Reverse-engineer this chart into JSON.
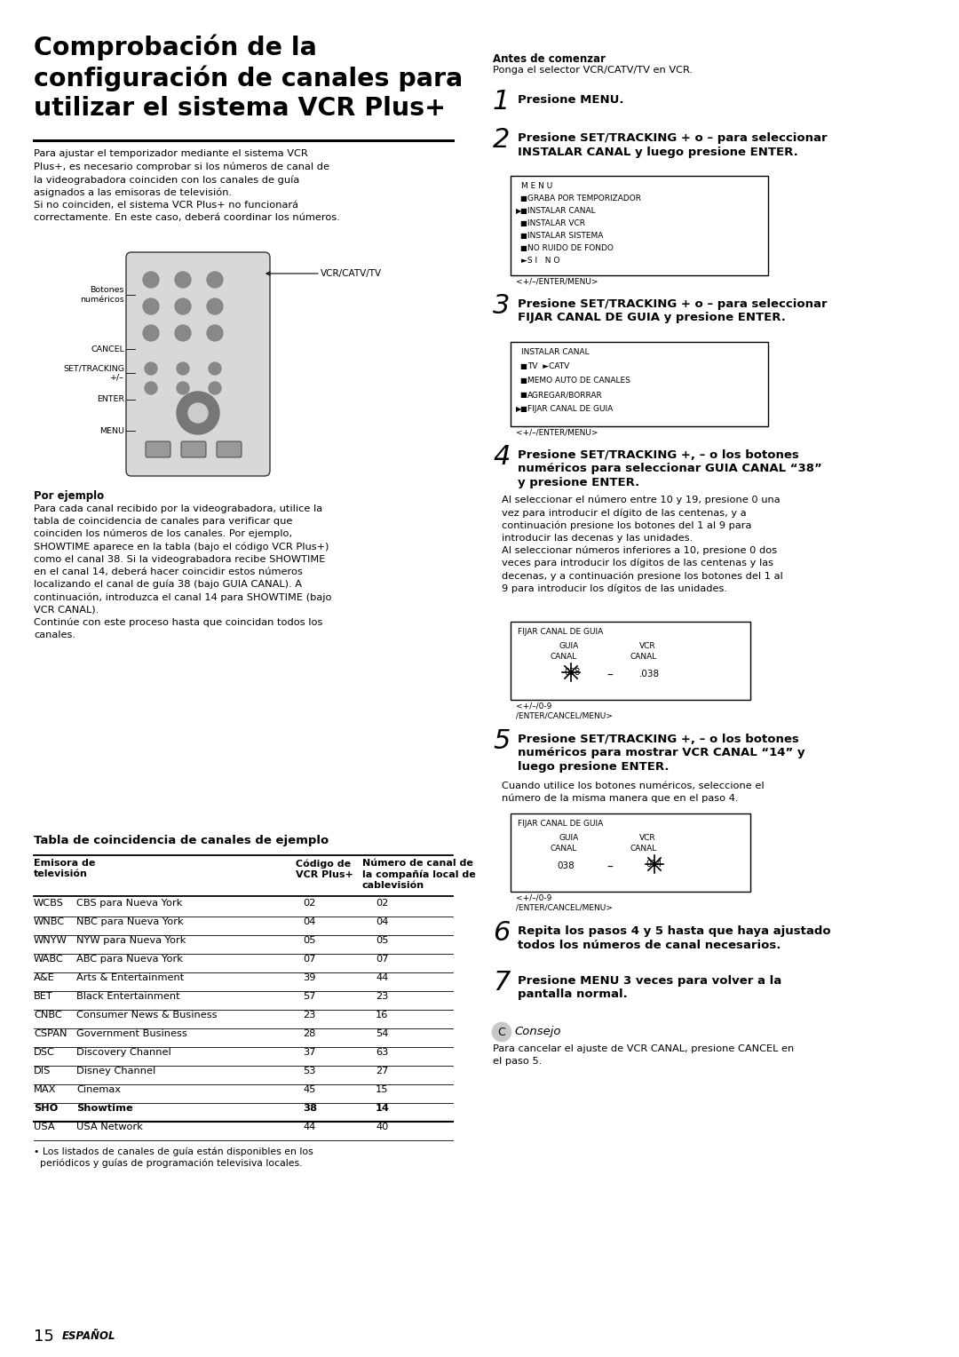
{
  "bg_color": "#ffffff",
  "title": "Comprobación de la\nconfiguración de canales para\nutilizar el sistema VCR Plus+",
  "intro_text": "Para ajustar el temporizador mediante el sistema VCR\nPlus+, es necesario comprobar si los números de canal de\nla videograbadora coinciden con los canales de guía\nasignados a las emisoras de televisión.\nSi no coinciden, el sistema VCR Plus+ no funcionará\ncorrectamente. En este caso, deberá coordinar los números.",
  "por_ejemplo_title": "Por ejemplo",
  "por_ejemplo_text": "Para cada canal recibido por la videograbadora, utilice la\ntabla de coincidencia de canales para verificar que\ncoinciden los números de los canales. Por ejemplo,\nSHOWTIME aparece en la tabla (bajo el código VCR Plus+)\ncomo el canal 38. Si la videograbadora recibe SHOWTIME\nen el canal 14, deberá hacer coincidir estos números\nlocalizando el canal de guía 38 (bajo GUIA CANAL). A\ncontinuación, introduzca el canal 14 para SHOWTIME (bajo\nVCR CANAL).\nContinúe con este proceso hasta que coincidan todos los\ncanales.",
  "tabla_title": "Tabla de coincidencia de canales de ejemplo",
  "table_rows": [
    {
      "bold": false,
      "abbr": "WCBS",
      "name": "CBS para Nueva York",
      "vcr": "02",
      "cable": "02"
    },
    {
      "bold": false,
      "abbr": "WNBC",
      "name": "NBC para Nueva York",
      "vcr": "04",
      "cable": "04"
    },
    {
      "bold": false,
      "abbr": "WNYW",
      "name": "NYW para Nueva York",
      "vcr": "05",
      "cable": "05"
    },
    {
      "bold": false,
      "abbr": "WABC",
      "name": "ABC para Nueva York",
      "vcr": "07",
      "cable": "07"
    },
    {
      "bold": false,
      "abbr": "A&E",
      "name": "Arts & Entertainment",
      "vcr": "39",
      "cable": "44"
    },
    {
      "bold": false,
      "abbr": "BET",
      "name": "Black Entertainment",
      "vcr": "57",
      "cable": "23"
    },
    {
      "bold": false,
      "abbr": "CNBC",
      "name": "Consumer News & Business",
      "vcr": "23",
      "cable": "16"
    },
    {
      "bold": false,
      "abbr": "CSPAN",
      "name": "Government Business",
      "vcr": "28",
      "cable": "54"
    },
    {
      "bold": false,
      "abbr": "DSC",
      "name": "Discovery Channel",
      "vcr": "37",
      "cable": "63"
    },
    {
      "bold": false,
      "abbr": "DIS",
      "name": "Disney Channel",
      "vcr": "53",
      "cable": "27"
    },
    {
      "bold": false,
      "abbr": "MAX",
      "name": "Cinemax",
      "vcr": "45",
      "cable": "15"
    },
    {
      "bold": true,
      "abbr": "SHO",
      "name": "Showtime",
      "vcr": "38",
      "cable": "14"
    },
    {
      "bold": false,
      "abbr": "USA",
      "name": "USA Network",
      "vcr": "44",
      "cable": "40"
    }
  ],
  "footnote": "• Los listados de canales de guía están disponibles en los\n  periódicos y guías de programación televisiva locales.",
  "page_num": "15",
  "page_label": "ESPAÑOL",
  "antes_label": "Antes de comenzar",
  "antes_text": "Ponga el selector VCR/CATV/TV en VCR.",
  "step1_text": "Presione MENU.",
  "step2_text": "Presione SET/TRACKING + o – para seleccionar\nINSTALAR CANAL y luego presione ENTER.",
  "step3_text": "Presione SET/TRACKING + o – para seleccionar\nFIJAR CANAL DE GUIA y presione ENTER.",
  "step4_text": "Presione SET/TRACKING +, – o los botones\nnuméricos para seleccionar GUIA CANAL “38”\ny presione ENTER.",
  "step4_detail": "Al seleccionar el número entre 10 y 19, presione 0 una\nvez para introducir el dígito de las centenas, y a\ncontinuación presione los botones del 1 al 9 para\nintroducir las decenas y las unidades.\nAl seleccionar números inferiores a 10, presione 0 dos\nveces para introducir los dígitos de las centenas y las\ndecenas, y a continuación presione los botones del 1 al\n9 para introducir los dígitos de las unidades.",
  "step5_text": "Presione SET/TRACKING +, – o los botones\nnuméricos para mostrar VCR CANAL “14” y\nluego presione ENTER.",
  "step5_detail": "Cuando utilice los botones numéricos, seleccione el\nnúmero de la misma manera que en el paso 4.",
  "step6_text": "Repita los pasos 4 y 5 hasta que haya ajustado\ntodos los números de canal necesarios.",
  "step7_text": "Presione MENU 3 veces para volver a la\npantalla normal.",
  "consejo_title": "Consejo",
  "consejo_text": "Para cancelar el ajuste de VCR CANAL, presione CANCEL en\nel paso 5.",
  "menu_nav1": "<+/–/ENTER/MENU>",
  "menu_nav2": "<+/–/ENTER/MENU>",
  "menu_nav_box": "<+/–/0-9\n/ENTER/CANCEL/MENU>"
}
